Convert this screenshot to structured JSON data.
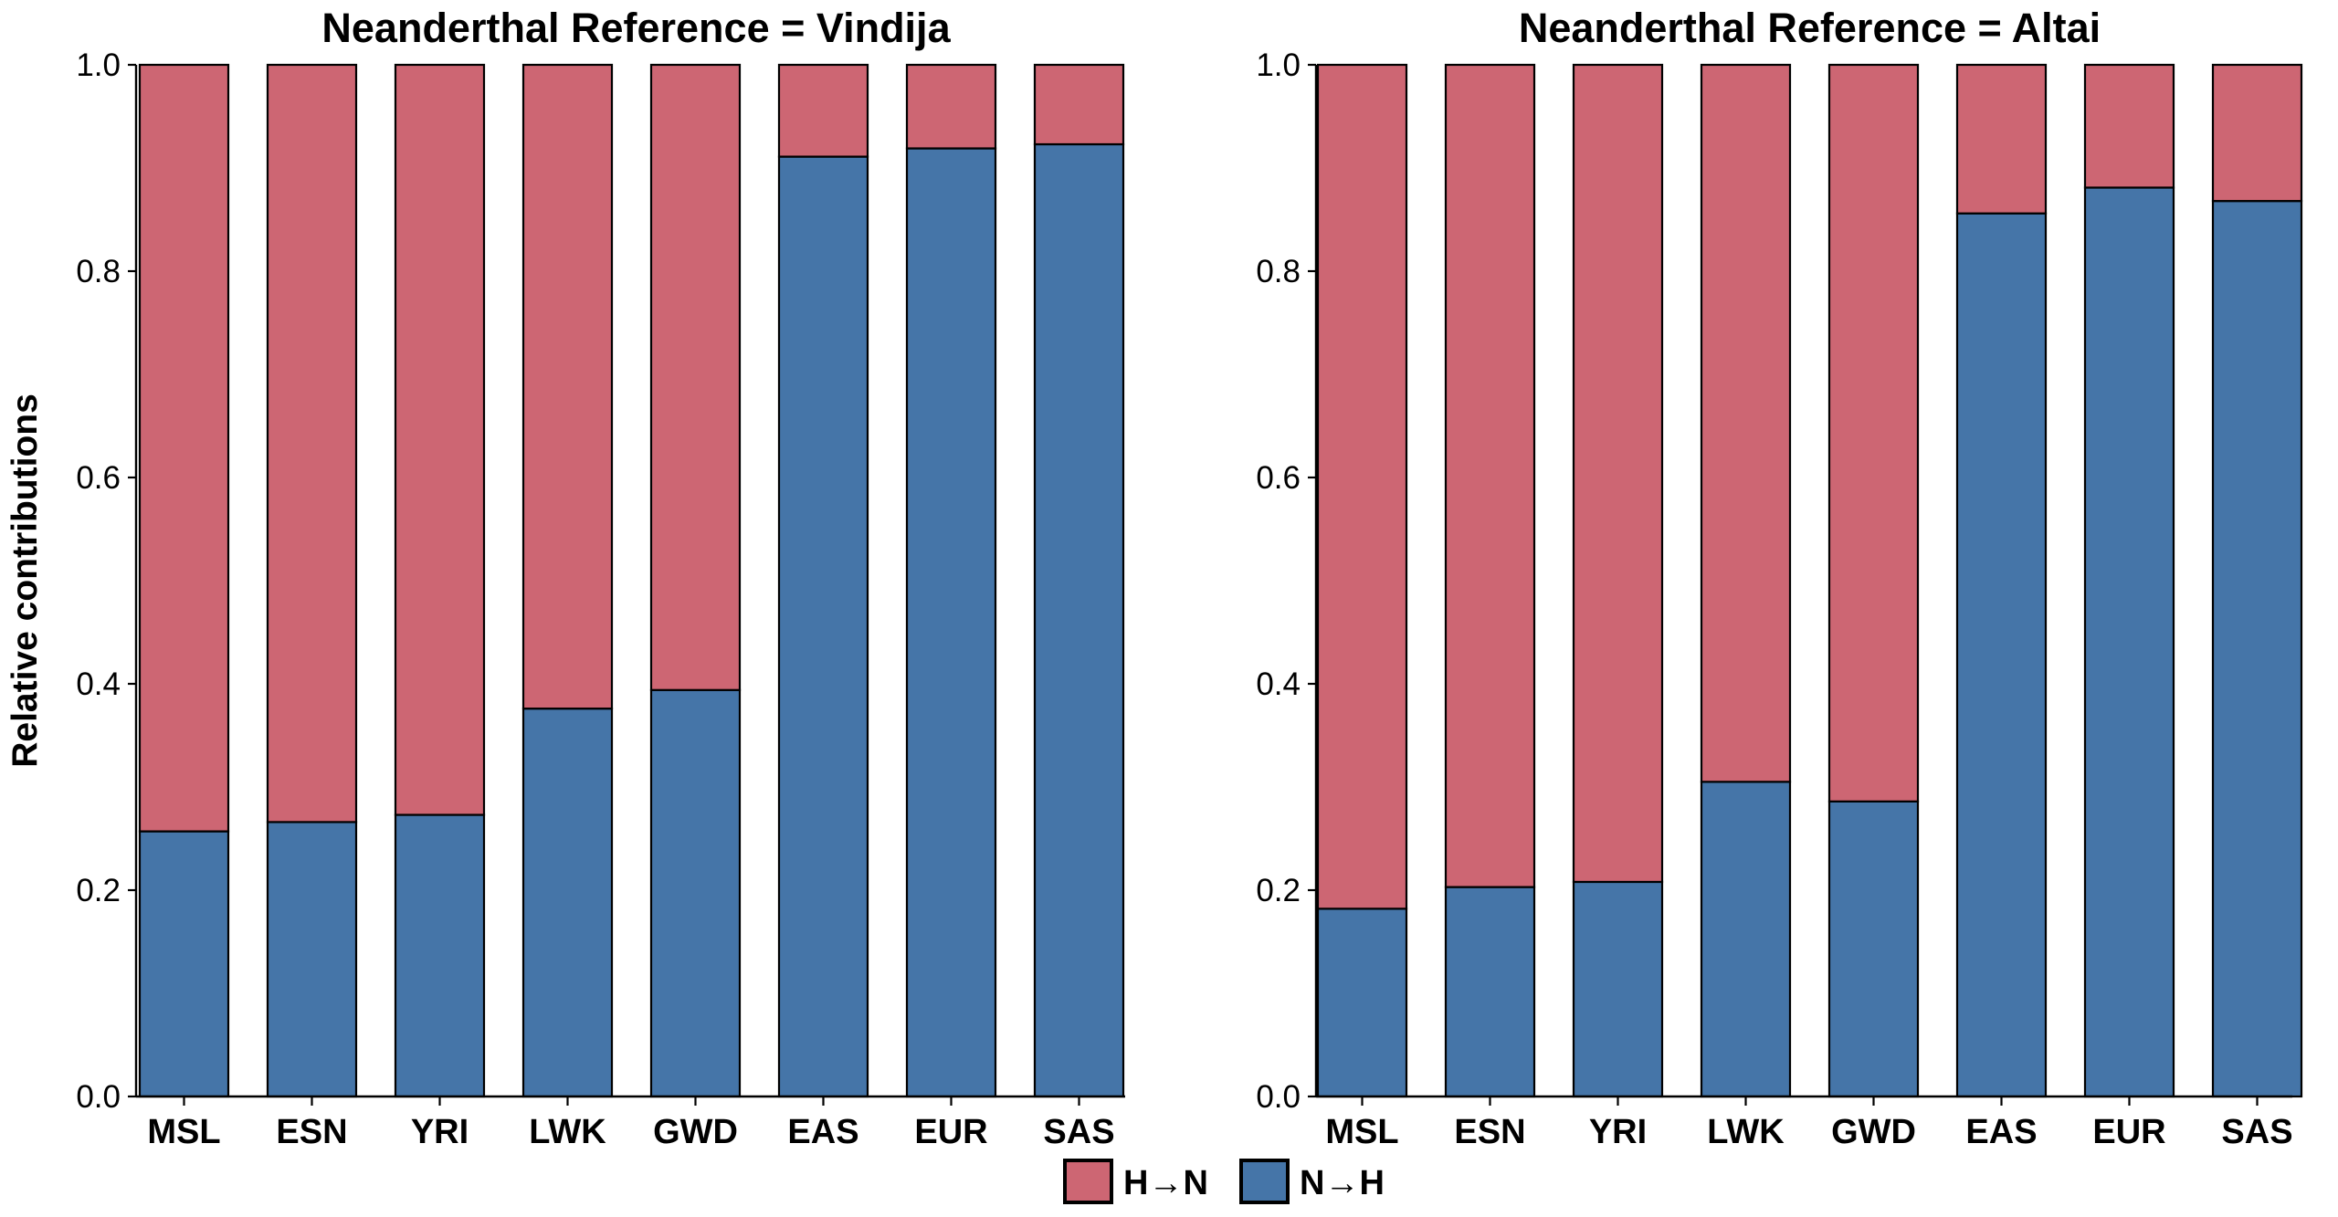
{
  "chart_data": {
    "type": "bar",
    "stacked": true,
    "ylabel": "Relative contributions",
    "ylim": [
      0,
      1
    ],
    "yticks": [
      "0.0",
      "0.2",
      "0.4",
      "0.6",
      "0.8",
      "1.0"
    ],
    "legend": {
      "placement": "bottom-center",
      "items": [
        {
          "label": "H→N",
          "color": "#cd6673"
        },
        {
          "label": "N→H",
          "color": "#4575a8"
        }
      ]
    },
    "panels": [
      {
        "title": "Neanderthal Reference = Vindija",
        "categories": [
          "MSL",
          "ESN",
          "YRI",
          "LWK",
          "GWD",
          "EAS",
          "EUR",
          "SAS"
        ],
        "series": [
          {
            "name": "N→H",
            "color": "#4575a8",
            "values": [
              0.257,
              0.266,
              0.273,
              0.376,
              0.394,
              0.911,
              0.919,
              0.923
            ]
          },
          {
            "name": "H→N",
            "color": "#cd6673",
            "values": [
              0.743,
              0.734,
              0.727,
              0.624,
              0.606,
              0.089,
              0.081,
              0.077
            ]
          }
        ]
      },
      {
        "title": "Neanderthal Reference = Altai",
        "categories": [
          "MSL",
          "ESN",
          "YRI",
          "LWK",
          "GWD",
          "EAS",
          "EUR",
          "SAS"
        ],
        "series": [
          {
            "name": "N→H",
            "color": "#4575a8",
            "values": [
              0.182,
              0.203,
              0.208,
              0.305,
              0.286,
              0.856,
              0.881,
              0.868
            ]
          },
          {
            "name": "H→N",
            "color": "#cd6673",
            "values": [
              0.818,
              0.797,
              0.792,
              0.695,
              0.714,
              0.144,
              0.119,
              0.132
            ]
          }
        ]
      }
    ]
  }
}
